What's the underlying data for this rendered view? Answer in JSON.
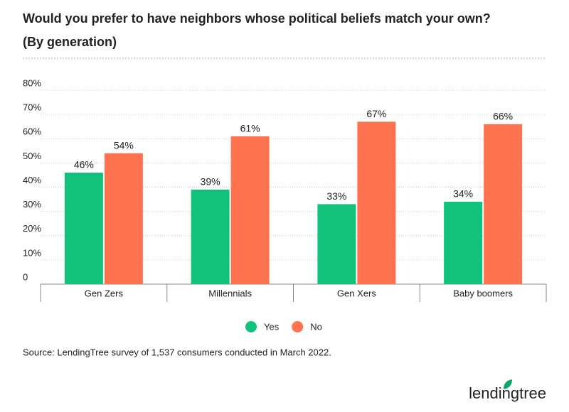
{
  "chart_data": {
    "type": "bar",
    "title": "Would you prefer to have neighbors whose political beliefs match your own?",
    "subtitle": "(By generation)",
    "categories": [
      "Gen Zers",
      "Millennials",
      "Gen Xers",
      "Baby boomers"
    ],
    "series": [
      {
        "name": "Yes",
        "color": "#12c27b",
        "values": [
          46,
          39,
          33,
          34
        ],
        "value_labels": [
          "46%",
          "39%",
          "33%",
          "34%"
        ]
      },
      {
        "name": "No",
        "color": "#ff7351",
        "values": [
          54,
          61,
          67,
          66
        ],
        "value_labels": [
          "54%",
          "61%",
          "67%",
          "66%"
        ]
      }
    ],
    "ylim": [
      0,
      80
    ],
    "yticks": [
      0,
      {
        "value": 10,
        "label": "10%"
      },
      {
        "value": 20,
        "label": "20%"
      },
      {
        "value": 30,
        "label": "30%"
      },
      {
        "value": 40,
        "label": "40%"
      },
      {
        "value": 50,
        "label": "50%"
      },
      {
        "value": 60,
        "label": "60%"
      },
      {
        "value": 70,
        "label": "70%"
      },
      {
        "value": 80,
        "label": "80%"
      }
    ],
    "grid": true,
    "legend": "bottom",
    "source": "Source: LendingTree survey of 1,537 consumers conducted in March 2022.",
    "logo": "lendingtree"
  }
}
